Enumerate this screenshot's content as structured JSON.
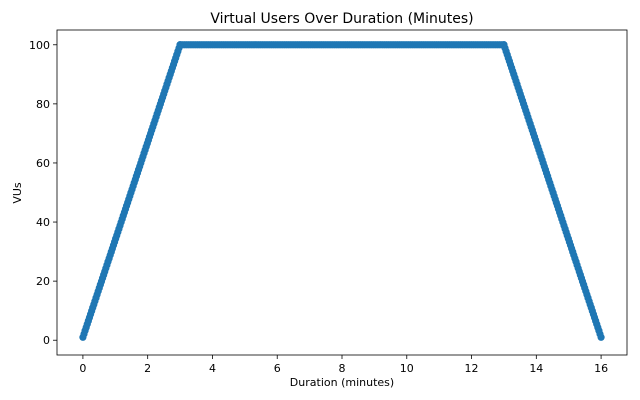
{
  "chart_data": {
    "type": "scatter",
    "title": "Virtual Users Over Duration (Minutes)",
    "xlabel": "Duration (minutes)",
    "ylabel": "VUs",
    "xlim": [
      -0.8,
      16.8
    ],
    "ylim": [
      -5,
      105
    ],
    "xticks": [
      0,
      2,
      4,
      6,
      8,
      10,
      12,
      14,
      16
    ],
    "yticks": [
      0,
      20,
      40,
      60,
      80,
      100
    ],
    "grid": false,
    "color": "#1f77b4",
    "series": [
      {
        "segments": [
          {
            "x_start": 0,
            "x_end": 3,
            "y_start": 1,
            "y_end": 100,
            "points": 90
          },
          {
            "x_start": 3,
            "x_end": 13,
            "y_start": 100,
            "y_end": 100,
            "points": 150
          },
          {
            "x_start": 13,
            "x_end": 16,
            "y_start": 100,
            "y_end": 1,
            "points": 90
          }
        ]
      }
    ]
  }
}
